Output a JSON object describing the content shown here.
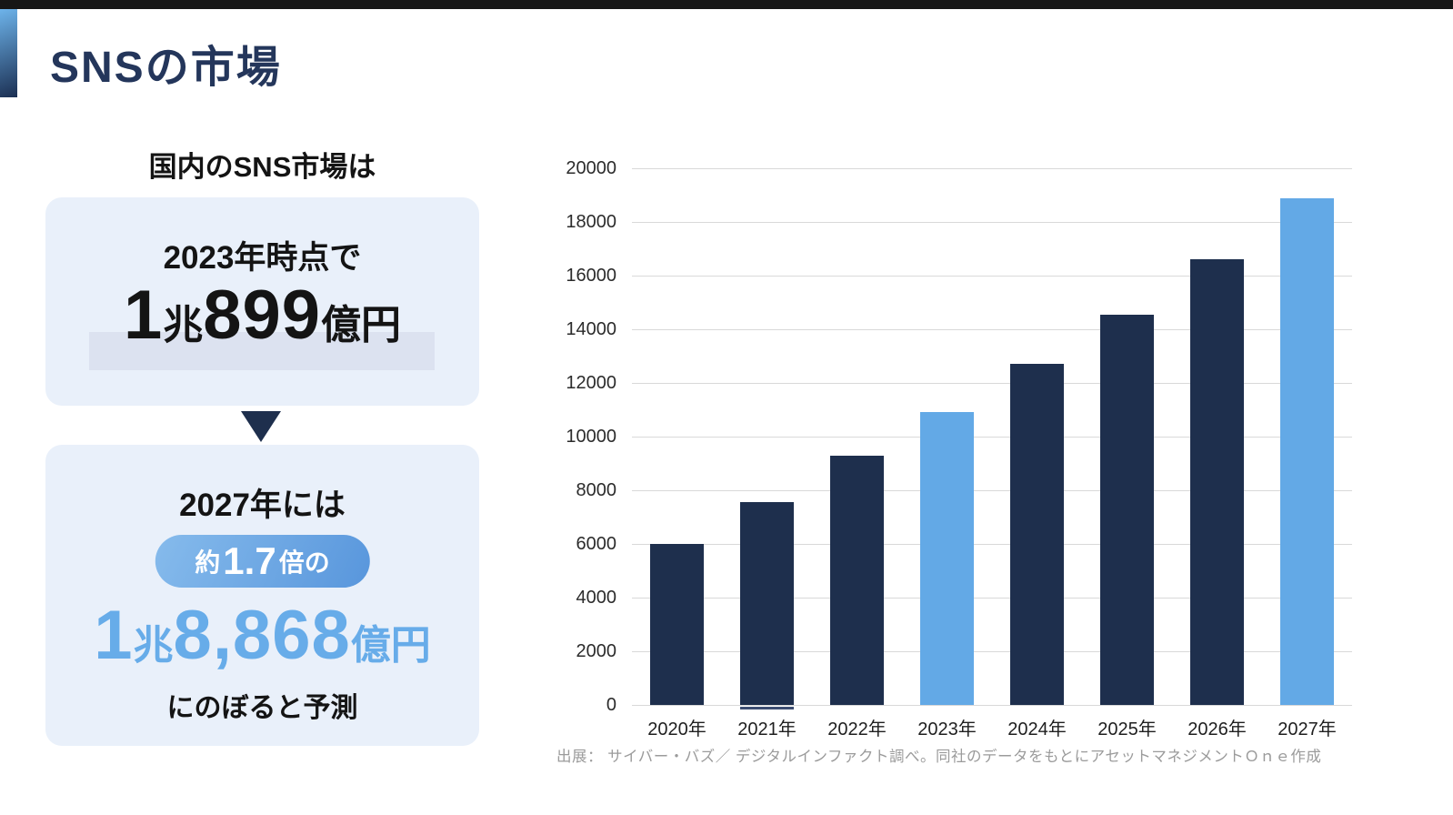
{
  "page": {
    "title": "SNSの市場"
  },
  "left_panel": {
    "intro": "国内のSNS市場は",
    "box1": {
      "heading": "2023年時点で",
      "value": {
        "n1": "1",
        "u1": "兆",
        "n2": "899",
        "u2": "億円"
      }
    },
    "box2": {
      "heading": "2027年には",
      "pill": {
        "pre": "約",
        "num": "1.7",
        "post": "倍の"
      },
      "value": {
        "n1": "1",
        "u1": "兆",
        "n2": "8,868",
        "u2": "億円"
      },
      "caption": "にのぼると予測"
    }
  },
  "chart_data": {
    "type": "bar",
    "title": "",
    "xlabel": "",
    "ylabel": "",
    "categories": [
      "2020年",
      "2021年",
      "2022年",
      "2023年",
      "2024年",
      "2025年",
      "2026年",
      "2027年"
    ],
    "values": [
      6000,
      7550,
      9300,
      10899,
      12700,
      14550,
      16600,
      18868
    ],
    "highlight_indices": [
      3,
      7
    ],
    "ylim": [
      0,
      20000
    ],
    "ytick_step": 2000,
    "grid": true,
    "legend": false,
    "base_sliver_index": 1,
    "source": "出展： サイバー・バズ／ デジタルインファクト調べ。同社のデータをもとにアセットマネジメントＯｎｅ作成"
  },
  "colors": {
    "top_strip": "#161616",
    "accent_gradient_start": "#6DB3EA",
    "accent_gradient_end": "#1B2F52",
    "title_navy": "#24365B",
    "box_bg": "#E9F0FA",
    "highlight_band": "#DCE2F0",
    "bar_navy": "#1E2F4D",
    "bar_blue": "#63A9E6",
    "value_blue": "#67ACE9",
    "pill_gradient_start": "#86BBEC",
    "pill_gradient_end": "#5896DC",
    "grid_line": "#D9D9D9",
    "source_text": "#9B9B9B"
  }
}
